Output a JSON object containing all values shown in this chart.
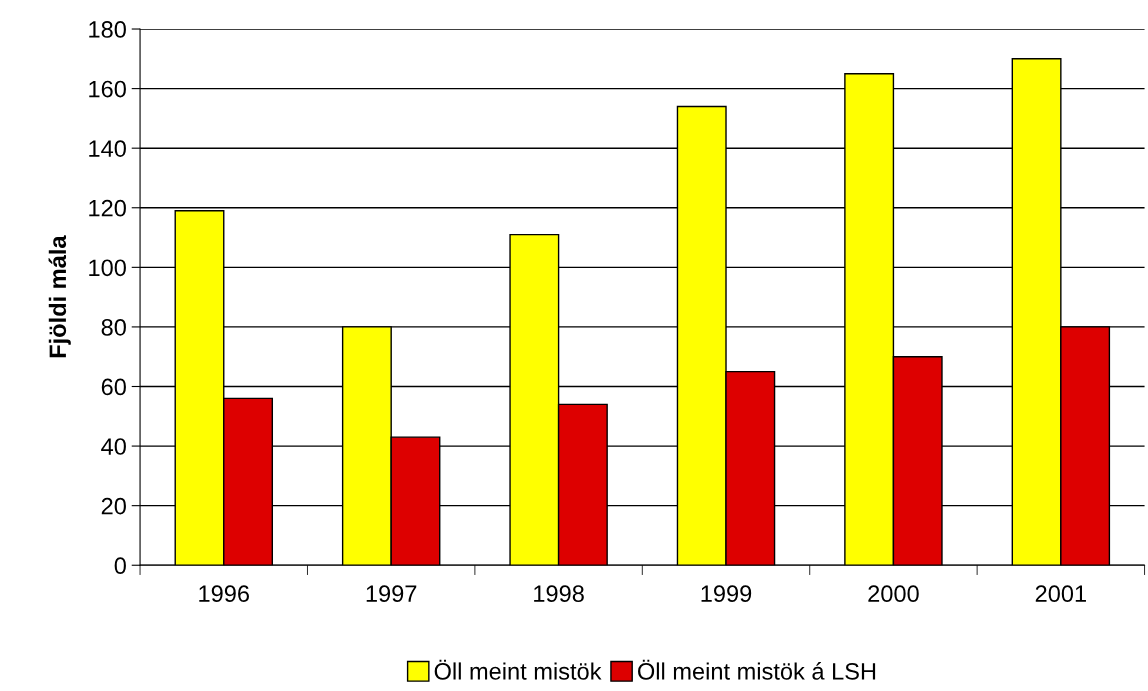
{
  "chart_data": {
    "type": "bar",
    "ylabel": "Fjöldi mála",
    "categories": [
      "1996",
      "1997",
      "1998",
      "1999",
      "2000",
      "2001"
    ],
    "series": [
      {
        "name": "Öll meint mistök",
        "color": "#ffff00",
        "values": [
          119,
          80,
          111,
          154,
          165,
          170
        ]
      },
      {
        "name": "Öll meint mistök á LSH",
        "color": "#dd0000",
        "values": [
          56,
          43,
          54,
          65,
          70,
          80
        ]
      }
    ],
    "ylim": [
      0,
      180
    ],
    "yticks": [
      0,
      20,
      40,
      60,
      80,
      100,
      120,
      140,
      160,
      180
    ],
    "grid": "y",
    "legend": "bottom"
  }
}
